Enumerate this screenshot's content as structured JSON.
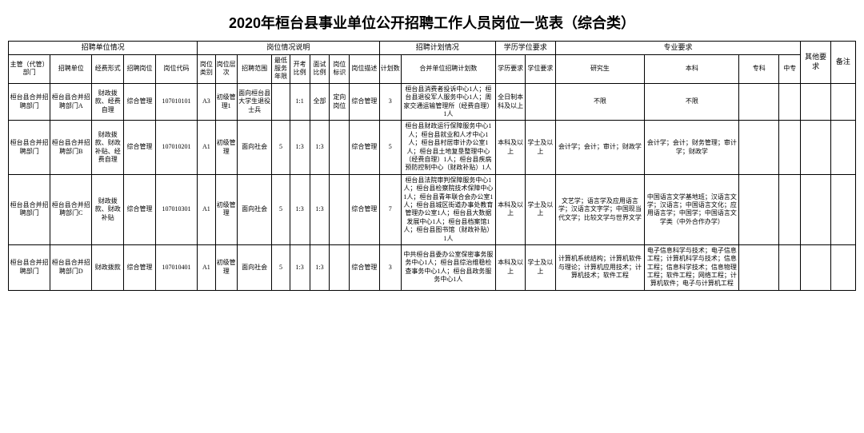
{
  "title": "2020年桓台县事业单位公开招聘工作人员岗位一览表（综合类）",
  "group_headers": {
    "g1": "招聘单位情况",
    "g2": "岗位情况说明",
    "g3": "招聘计划情况",
    "g4": "学历学位要求",
    "g5": "专业要求",
    "g6": "其他要求",
    "g7": "备注"
  },
  "col_headers": {
    "c1": "主管（代管）部门",
    "c2": "招聘单位",
    "c3": "经费形式",
    "c4": "招聘岗位",
    "c5": "岗位代码",
    "c6": "岗位类别",
    "c7": "岗位层次",
    "c8": "招聘范围",
    "c9": "最低服务年限",
    "c10": "开考比例",
    "c11": "面试比例",
    "c12": "岗位标识",
    "c13": "岗位描述",
    "c14": "计划数",
    "c15": "合并单位招聘计划数",
    "c16": "学历要求",
    "c17": "学位要求",
    "c18": "研究生",
    "c19": "本科",
    "c20": "专科",
    "c21": "中专"
  },
  "rows": [
    {
      "c1": "桓台县合并招聘部门",
      "c2": "桓台县合并招聘部门A",
      "c3": "财政拨款、经费自理",
      "c4": "综合管理",
      "c5": "107010101",
      "c6": "A3",
      "c7": "初级管理1",
      "c8": "面向桓台县大学生退役士兵",
      "c9": "",
      "c10": "1:1",
      "c11": "全部",
      "c12": "定向岗位",
      "c13": "综合管理",
      "c14": "3",
      "c15": "桓台县消费者投诉中心1人；桓台县退役军人服务中心1人；周家交通运输管理所（经费自理）1人",
      "c16": "全日制本科及以上",
      "c17": "",
      "c18": "不限",
      "c19": "不限",
      "c20": "",
      "c21": "",
      "c22": "",
      "c23": ""
    },
    {
      "c1": "桓台县合并招聘部门",
      "c2": "桓台县合并招聘部门B",
      "c3": "财政拨款、财政补贴、经费自理",
      "c4": "综合管理",
      "c5": "107010201",
      "c6": "A1",
      "c7": "初级管理",
      "c8": "面向社会",
      "c9": "5",
      "c10": "1:3",
      "c11": "1:3",
      "c12": "",
      "c13": "综合管理",
      "c14": "5",
      "c15": "桓台县财政运行保障服务中心1人；桓台县就业和人才中心1人；桓台县村居审计办公室1人；桓台县土地复垦整理中心（经费自理）1人；桓台县疾病预防控制中心（财政补贴）1人",
      "c16": "本科及以上",
      "c17": "学士及以上",
      "c18": "会计学；会计；审计；财政学",
      "c19": "会计学；会计；财务管理；审计学；财政学",
      "c20": "",
      "c21": "",
      "c22": "",
      "c23": ""
    },
    {
      "c1": "桓台县合并招聘部门",
      "c2": "桓台县合并招聘部门C",
      "c3": "财政拨款、财政补贴",
      "c4": "综合管理",
      "c5": "107010301",
      "c6": "A1",
      "c7": "初级管理",
      "c8": "面向社会",
      "c9": "5",
      "c10": "1:3",
      "c11": "1:3",
      "c12": "",
      "c13": "综合管理",
      "c14": "7",
      "c15": "桓台县法院审判保障服务中心1人；桓台县检察院技术保障中心1人；桓台县青年联合会办公室1人；桓台县城区街道办事处教育管理办公室1人；桓台县大数据发展中心1人；桓台县档案馆1人；桓台县图书馆（财政补贴）1人",
      "c16": "本科及以上",
      "c17": "学士及以上",
      "c18": "文艺学；语言学及应用语言学；汉语言文字学；中国现当代文学；比较文学与世界文学",
      "c19": "中国语言文学基地班；汉语言文学；汉语言；中国语言文化；应用语言学；中国学；中国语言文学类（中外合作办学）",
      "c20": "",
      "c21": "",
      "c22": "",
      "c23": ""
    },
    {
      "c1": "桓台县合并招聘部门",
      "c2": "桓台县合并招聘部门D",
      "c3": "财政拨款",
      "c4": "综合管理",
      "c5": "107010401",
      "c6": "A1",
      "c7": "初级管理",
      "c8": "面向社会",
      "c9": "5",
      "c10": "1:3",
      "c11": "1:3",
      "c12": "",
      "c13": "综合管理",
      "c14": "3",
      "c15": "中共桓台县委办公室保密事务服务中心1人；桓台县综治维稳检查事务中心1人；桓台县政务服务中心1人",
      "c16": "本科及以上",
      "c17": "学士及以上",
      "c18": "计算机系统结构；计算机软件与理论；计算机应用技术；计算机技术；软件工程",
      "c19": "电子信息科学与技术；电子信息工程；计算机科学与技术；信息工程；信息科学技术；信息物理工程；软件工程；网络工程；计算机软件；电子与计算机工程",
      "c20": "",
      "c21": "",
      "c22": "",
      "c23": ""
    }
  ]
}
